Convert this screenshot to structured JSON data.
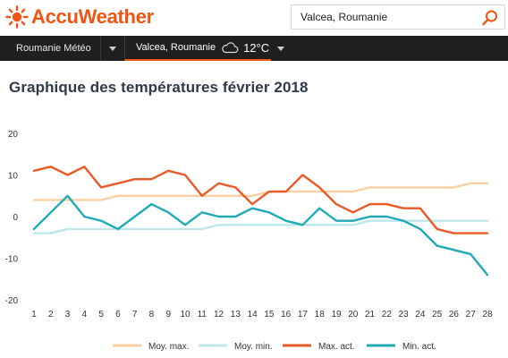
{
  "header": {
    "brand": "AccuWeather",
    "search_value": "Valcea, Roumanie"
  },
  "nav": {
    "country_menu": "Roumanie Météo",
    "location": "Valcea, Roumanie",
    "current_temp": "12°C",
    "weather_icon": "cloud-icon"
  },
  "page": {
    "title": "Graphique des températures février 2018"
  },
  "colors": {
    "brand": "#f05514",
    "navbar": "#1f1f1f",
    "moy_max": "#f9cfa3",
    "moy_min": "#bfe6ea",
    "max_act": "#e95a26",
    "min_act": "#20aab7"
  },
  "chart_data": {
    "type": "line",
    "title": "",
    "xlabel": "",
    "ylabel": "",
    "x": [
      "1",
      "2",
      "3",
      "4",
      "5",
      "6",
      "7",
      "8",
      "9",
      "10",
      "11",
      "12",
      "13",
      "14",
      "15",
      "16",
      "17",
      "18",
      "19",
      "20",
      "21",
      "22",
      "23",
      "24",
      "25",
      "26",
      "27",
      "28"
    ],
    "ylim": [
      -20,
      20
    ],
    "yticks": [
      "20",
      "10",
      "0",
      "-10",
      "-20"
    ],
    "grid": false,
    "legend_position": "bottom",
    "series": [
      {
        "name": "Moy. max.",
        "color": "#f9cfa3",
        "values": [
          4,
          4,
          4,
          4,
          4,
          5,
          5,
          5,
          5,
          5,
          5,
          5,
          5,
          5,
          6,
          6,
          6,
          6,
          6,
          6,
          7,
          7,
          7,
          7,
          7,
          7,
          8,
          8
        ]
      },
      {
        "name": "Moy. min.",
        "color": "#bfe6ea",
        "values": [
          -4,
          -4,
          -3,
          -3,
          -3,
          -3,
          -3,
          -3,
          -3,
          -3,
          -3,
          -2,
          -2,
          -2,
          -2,
          -2,
          -2,
          -2,
          -2,
          -2,
          -1,
          -1,
          -1,
          -1,
          -1,
          -1,
          -1,
          -1
        ]
      },
      {
        "name": "Max. act.",
        "color": "#e95a26",
        "values": [
          11,
          12,
          10,
          12,
          7,
          8,
          9,
          9,
          11,
          10,
          5,
          8,
          7,
          3,
          6,
          6,
          10,
          7,
          3,
          1,
          3,
          3,
          2,
          2,
          -3,
          -4,
          -4,
          -4
        ]
      },
      {
        "name": "Min. act.",
        "color": "#20aab7",
        "values": [
          -3,
          1,
          5,
          0,
          -1,
          -3,
          0,
          3,
          1,
          -2,
          1,
          0,
          0,
          2,
          1,
          -1,
          -2,
          2,
          -1,
          -1,
          0,
          0,
          -1,
          -3,
          -7,
          -8,
          -9,
          -14
        ]
      }
    ]
  }
}
